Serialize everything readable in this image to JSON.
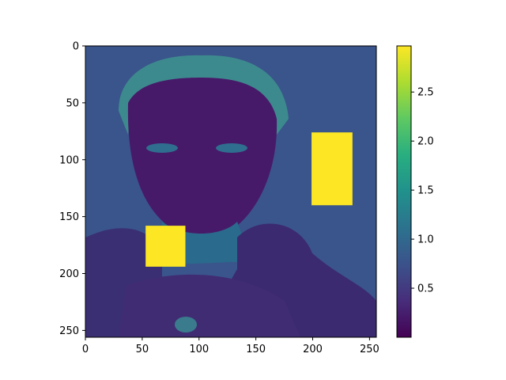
{
  "chart_data": {
    "type": "heatmap",
    "title": "",
    "xlabel": "",
    "ylabel": "",
    "xlim": [
      0,
      255
    ],
    "ylim": [
      255,
      0
    ],
    "x_ticks": [
      0,
      50,
      100,
      150,
      200,
      250
    ],
    "y_ticks": [
      0,
      50,
      100,
      150,
      200,
      250
    ],
    "x_tick_labels": [
      "0",
      "50",
      "100",
      "150",
      "200",
      "250"
    ],
    "y_tick_labels": [
      "0",
      "50",
      "100",
      "150",
      "200",
      "250"
    ],
    "colormap": "viridis",
    "color_range": [
      0.0,
      2.97
    ],
    "colorbar_ticks": [
      0.5,
      1.0,
      1.5,
      2.0,
      2.5
    ],
    "colorbar_tick_labels": [
      "0.5",
      "1.0",
      "1.5",
      "2.0",
      "2.5"
    ],
    "image_description_regions": [
      {
        "name": "background",
        "value": 0.85
      },
      {
        "name": "face",
        "value": 0.25
      },
      {
        "name": "hair",
        "value": 1.1
      },
      {
        "name": "jacket",
        "value": 0.35
      }
    ],
    "patches": [
      {
        "name": "patch-right",
        "x0": 199,
        "x1": 235,
        "y0": 76,
        "y1": 140,
        "value": 2.97
      },
      {
        "name": "patch-left",
        "x0": 53,
        "x1": 88,
        "y0": 158,
        "y1": 194,
        "value": 2.97
      }
    ],
    "grid": false,
    "colorbar": true
  }
}
